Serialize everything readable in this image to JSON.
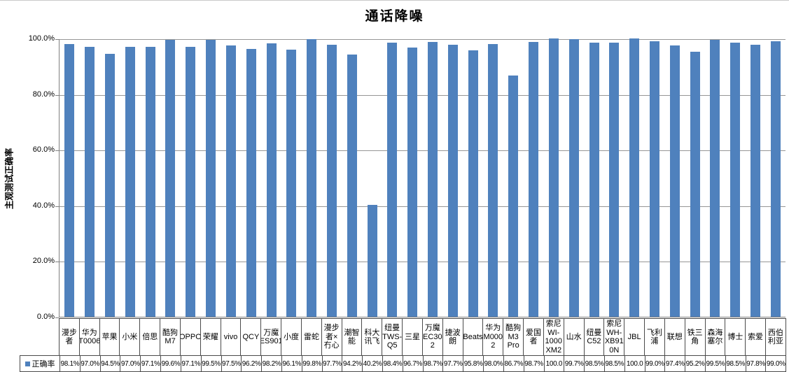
{
  "colors": {
    "bar": "#4F81BD",
    "gridline": "#969696",
    "axis": "#808080",
    "table_border": "#4a4a4a",
    "text": "#000000"
  },
  "chart_data": {
    "type": "bar",
    "title": "通话降噪",
    "xlabel": "",
    "ylabel": "主观测试正确率",
    "ylim": [
      0,
      100
    ],
    "grid": true,
    "ytick_labels": [
      "100.0%",
      "80.0%",
      "60.0%",
      "40.0%",
      "20.0%",
      "0.0%"
    ],
    "legend_position": "bottom-table-left",
    "series_name": "正确率",
    "bar_color": "#4F81BD",
    "categories": [
      "漫步者",
      "华为T0006",
      "苹果",
      "小米",
      "倍思",
      "酷狗M7",
      "OPPO",
      "荣耀",
      "vivo",
      "QCY",
      "万魔ES901",
      "小度",
      "雷蛇",
      "漫步者×冇心",
      "潮智能",
      "科大讯飞",
      "纽曼TWS-Q5",
      "三星",
      "万魔EC302",
      "捷波朗",
      "Beats",
      "华为M0002",
      "酷狗M3 Pro",
      "爱国者",
      "索尼WI-1000XM2",
      "山水",
      "纽曼C52",
      "索尼WH-XB910N",
      "JBL",
      "飞利浦",
      "联想",
      "铁三角",
      "森海塞尔",
      "博士",
      "索爱",
      "西伯利亚"
    ],
    "category_display": [
      "漫步\n者",
      "华为\nT0006",
      "苹果",
      "小米",
      "倍思",
      "酷狗\nM7",
      "OPPO",
      "荣耀",
      "vivo",
      "QCY",
      "万魔\nES901",
      "小度",
      "雷蛇",
      "漫步\n者×\n冇心",
      "潮智\n能",
      "科大\n讯飞",
      "纽曼\nTWS-\nQ5",
      "三星",
      "万魔\nEC30\n2",
      "捷波\n朗",
      "Beats",
      "华为\nM000\n2",
      "酷狗\nM3\nPro",
      "爱国\n者",
      "索尼\nWI-\n1000\nXM2",
      "山水",
      "纽曼\nC52",
      "索尼\nWH-\nXB91\n0N",
      "JBL",
      "飞利\n浦",
      "联想",
      "铁三\n角",
      "森海\n塞尔",
      "博士",
      "索爱",
      "西伯\n利亚"
    ],
    "values": [
      98.1,
      97.0,
      94.5,
      97.0,
      97.1,
      99.6,
      97.1,
      99.5,
      97.5,
      96.2,
      98.2,
      96.1,
      99.8,
      97.7,
      94.2,
      40.2,
      98.4,
      96.7,
      98.7,
      97.7,
      95.8,
      98.0,
      86.7,
      98.7,
      100.0,
      99.7,
      98.5,
      98.5,
      100.0,
      99.0,
      97.4,
      95.2,
      99.5,
      98.5,
      97.8,
      99.0
    ],
    "value_display": [
      "98.1%",
      "97.0%",
      "94.5%",
      "97.0%",
      "97.1%",
      "99.6%",
      "97.1%",
      "99.5%",
      "97.5%",
      "96.2%",
      "98.2%",
      "96.1%",
      "99.8%",
      "97.7%",
      "94.2%",
      "40.2%",
      "98.4%",
      "96.7%",
      "98.7%",
      "97.7%",
      "95.8%",
      "98.0%",
      "86.7%",
      "98.7%",
      "100.0",
      "99.7%",
      "98.5%",
      "98.5%",
      "100.0",
      "99.0%",
      "97.4%",
      "95.2%",
      "99.5%",
      "98.5%",
      "97.8%",
      "99.0%"
    ]
  }
}
